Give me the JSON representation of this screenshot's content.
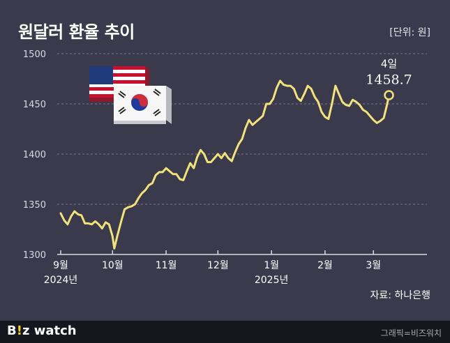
{
  "header": {
    "title": "원달러 환율 추이",
    "unit": "[단위: 원]"
  },
  "footer": {
    "logo_b": "B",
    "logo_i": "!",
    "logo_z": "z",
    "logo_watch": " watch",
    "credit": "그래픽=비즈워치",
    "source": "자료: 하나은행"
  },
  "chart_data": {
    "type": "line",
    "title": "원달러 환율 추이",
    "ylabel": "",
    "unit": "[단위: 원]",
    "ylim": [
      1300,
      1500
    ],
    "yticks": [
      1300,
      1350,
      1400,
      1450,
      1500
    ],
    "grid": true,
    "line_color": "#f2e27a",
    "x_labels": [
      {
        "x": "2024-09-01",
        "label": "9월",
        "sub": "2024년"
      },
      {
        "x": "2024-10-01",
        "label": "10월",
        "sub": ""
      },
      {
        "x": "2024-11-01",
        "label": "11월",
        "sub": ""
      },
      {
        "x": "2024-12-01",
        "label": "12월",
        "sub": ""
      },
      {
        "x": "2025-01-01",
        "label": "1월",
        "sub": "2025년"
      },
      {
        "x": "2025-02-01",
        "label": "2월",
        "sub": ""
      },
      {
        "x": "2025-03-01",
        "label": "3월",
        "sub": ""
      }
    ],
    "x_range": [
      "2024-09-01",
      "2025-04-01"
    ],
    "series": [
      {
        "values": [
          [
            "2024-09-01",
            1341
          ],
          [
            "2024-09-03",
            1334
          ],
          [
            "2024-09-05",
            1330
          ],
          [
            "2024-09-07",
            1338
          ],
          [
            "2024-09-09",
            1343
          ],
          [
            "2024-09-11",
            1340
          ],
          [
            "2024-09-13",
            1339
          ],
          [
            "2024-09-15",
            1331
          ],
          [
            "2024-09-17",
            1331
          ],
          [
            "2024-09-19",
            1330
          ],
          [
            "2024-09-21",
            1333
          ],
          [
            "2024-09-23",
            1330
          ],
          [
            "2024-09-25",
            1326
          ],
          [
            "2024-09-27",
            1332
          ],
          [
            "2024-09-29",
            1330
          ],
          [
            "2024-10-01",
            1318
          ],
          [
            "2024-10-02",
            1306
          ],
          [
            "2024-10-04",
            1320
          ],
          [
            "2024-10-06",
            1333
          ],
          [
            "2024-10-08",
            1345
          ],
          [
            "2024-10-10",
            1347
          ],
          [
            "2024-10-12",
            1348
          ],
          [
            "2024-10-14",
            1350
          ],
          [
            "2024-10-16",
            1356
          ],
          [
            "2024-10-18",
            1361
          ],
          [
            "2024-10-20",
            1364
          ],
          [
            "2024-10-22",
            1369
          ],
          [
            "2024-10-24",
            1371
          ],
          [
            "2024-10-26",
            1379
          ],
          [
            "2024-10-28",
            1382
          ],
          [
            "2024-10-30",
            1382
          ],
          [
            "2024-11-01",
            1386
          ],
          [
            "2024-11-03",
            1383
          ],
          [
            "2024-11-05",
            1380
          ],
          [
            "2024-11-07",
            1380
          ],
          [
            "2024-11-09",
            1375
          ],
          [
            "2024-11-11",
            1374
          ],
          [
            "2024-11-13",
            1383
          ],
          [
            "2024-11-15",
            1391
          ],
          [
            "2024-11-17",
            1386
          ],
          [
            "2024-11-19",
            1397
          ],
          [
            "2024-11-21",
            1404
          ],
          [
            "2024-11-23",
            1400
          ],
          [
            "2024-11-25",
            1392
          ],
          [
            "2024-11-27",
            1392
          ],
          [
            "2024-11-29",
            1396
          ],
          [
            "2024-12-01",
            1400
          ],
          [
            "2024-12-03",
            1396
          ],
          [
            "2024-12-05",
            1401
          ],
          [
            "2024-12-07",
            1396
          ],
          [
            "2024-12-09",
            1393
          ],
          [
            "2024-12-11",
            1402
          ],
          [
            "2024-12-13",
            1410
          ],
          [
            "2024-12-15",
            1415
          ],
          [
            "2024-12-17",
            1426
          ],
          [
            "2024-12-19",
            1434
          ],
          [
            "2024-12-21",
            1429
          ],
          [
            "2024-12-23",
            1432
          ],
          [
            "2024-12-25",
            1435
          ],
          [
            "2024-12-27",
            1438
          ],
          [
            "2024-12-29",
            1450
          ],
          [
            "2024-12-31",
            1450
          ],
          [
            "2025-01-02",
            1455
          ],
          [
            "2025-01-04",
            1466
          ],
          [
            "2025-01-06",
            1473
          ],
          [
            "2025-01-08",
            1469
          ],
          [
            "2025-01-10",
            1468
          ],
          [
            "2025-01-12",
            1468
          ],
          [
            "2025-01-14",
            1465
          ],
          [
            "2025-01-16",
            1456
          ],
          [
            "2025-01-18",
            1453
          ],
          [
            "2025-01-20",
            1460
          ],
          [
            "2025-01-22",
            1468
          ],
          [
            "2025-01-24",
            1465
          ],
          [
            "2025-01-26",
            1457
          ],
          [
            "2025-01-28",
            1452
          ],
          [
            "2025-01-30",
            1442
          ],
          [
            "2025-02-01",
            1437
          ],
          [
            "2025-02-03",
            1435
          ],
          [
            "2025-02-05",
            1450
          ],
          [
            "2025-02-07",
            1468
          ],
          [
            "2025-02-09",
            1460
          ],
          [
            "2025-02-11",
            1452
          ],
          [
            "2025-02-13",
            1449
          ],
          [
            "2025-02-15",
            1448
          ],
          [
            "2025-02-17",
            1454
          ],
          [
            "2025-02-19",
            1452
          ],
          [
            "2025-02-21",
            1449
          ],
          [
            "2025-02-23",
            1444
          ],
          [
            "2025-02-25",
            1442
          ],
          [
            "2025-02-27",
            1438
          ],
          [
            "2025-03-01",
            1434
          ],
          [
            "2025-03-03",
            1431
          ],
          [
            "2025-03-05",
            1433
          ],
          [
            "2025-03-07",
            1436
          ],
          [
            "2025-03-09",
            1450
          ],
          [
            "2025-03-10",
            1458.7
          ]
        ]
      }
    ],
    "annotation": {
      "x": "2025-03-10",
      "y": 1458.7,
      "label": "4일",
      "value": "1458.7"
    }
  }
}
